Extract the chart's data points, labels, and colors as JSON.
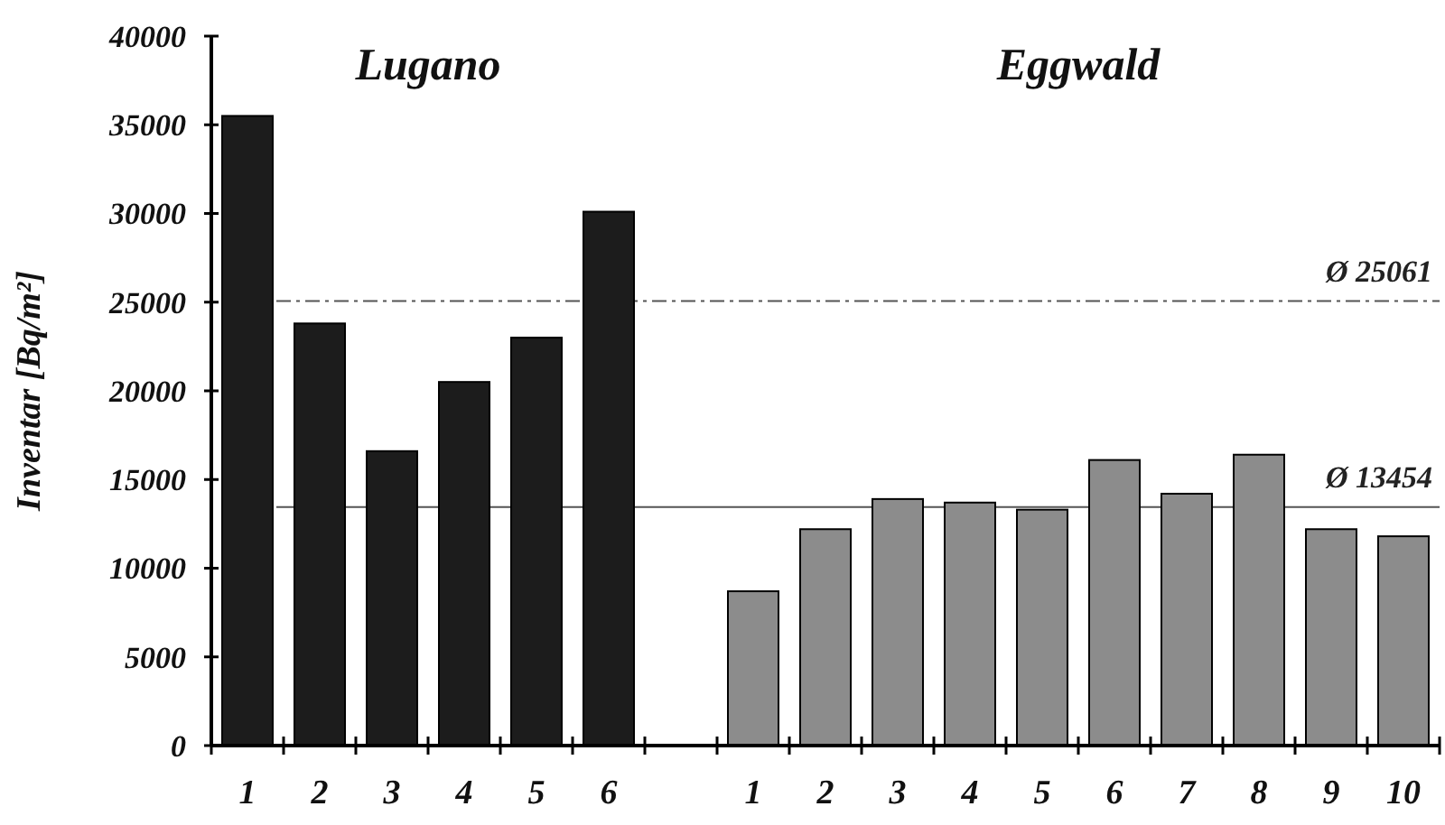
{
  "chart_data": {
    "type": "bar",
    "ylabel": "Inventar  [Bq/m²]",
    "categories": [
      "1",
      "2",
      "3",
      "4",
      "5",
      "6",
      null,
      "1",
      "2",
      "3",
      "4",
      "5",
      "6",
      "7",
      "8",
      "9",
      "10"
    ],
    "values": [
      35500,
      23800,
      16600,
      20500,
      23000,
      30100,
      null,
      8700,
      12200,
      13900,
      13700,
      13300,
      16100,
      14200,
      16400,
      12200,
      11800
    ],
    "colors": [
      "#1c1c1c",
      "#1c1c1c",
      "#1c1c1c",
      "#1c1c1c",
      "#1c1c1c",
      "#1c1c1c",
      null,
      "#8c8c8c",
      "#8c8c8c",
      "#8c8c8c",
      "#8c8c8c",
      "#8c8c8c",
      "#8c8c8c",
      "#8c8c8c",
      "#8c8c8c",
      "#8c8c8c",
      "#8c8c8c"
    ],
    "ylim": [
      0,
      40000
    ],
    "yticks": [
      0,
      5000,
      10000,
      15000,
      20000,
      25000,
      30000,
      35000,
      40000
    ],
    "annotations": [
      "Lugano",
      "Eggwald"
    ],
    "ref_lines": [
      {
        "axis": "y",
        "value": 25061,
        "label": "Ø 25061",
        "color": "#555555",
        "line_style": "dashed"
      },
      {
        "axis": "y",
        "value": 13454,
        "label": "Ø 13454",
        "color": "#555555",
        "line_style": "solid"
      }
    ],
    "grid": false
  }
}
